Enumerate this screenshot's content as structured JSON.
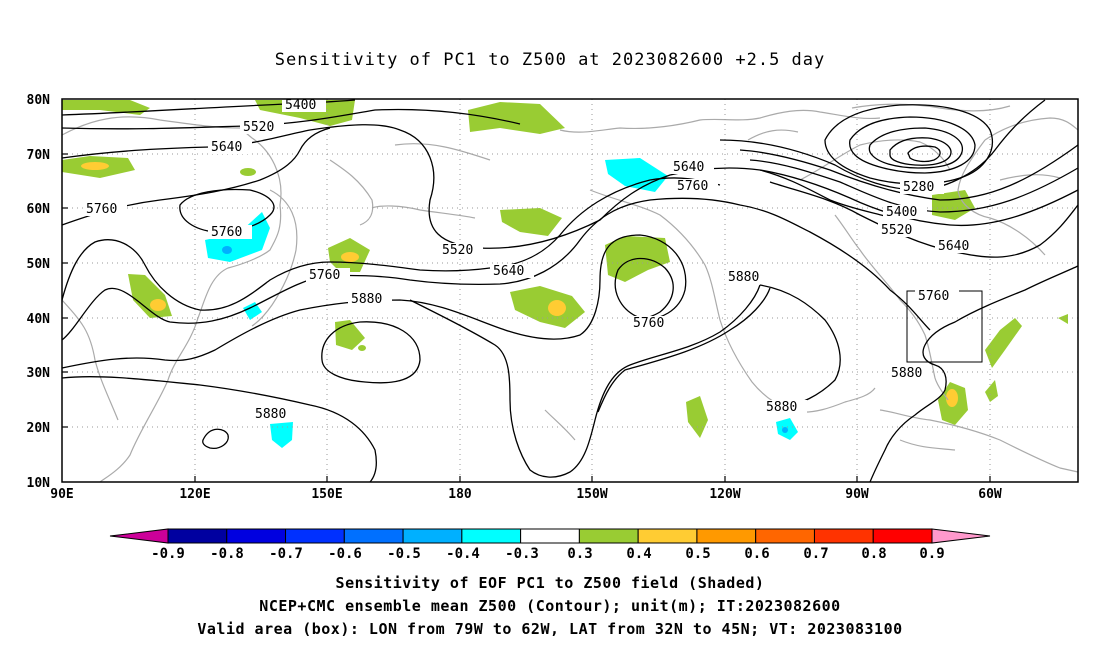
{
  "title": "Sensitivity of PC1 to Z500 at 2023082600 +2.5 day",
  "map": {
    "lat_labels": [
      "80N",
      "70N",
      "60N",
      "50N",
      "40N",
      "30N",
      "20N",
      "10N"
    ],
    "lon_labels": [
      "90E",
      "120E",
      "150E",
      "180",
      "150W",
      "120W",
      "90W",
      "60W"
    ],
    "contour_labels": [
      "5400",
      "5520",
      "5640",
      "5760",
      "5760",
      "5760",
      "5880",
      "5880",
      "5520",
      "5640",
      "5640",
      "5760",
      "5760",
      "5880",
      "5880",
      "5280",
      "5400",
      "5520",
      "5640",
      "5760",
      "5880"
    ],
    "valid_box": {
      "lon": [
        "79W",
        "62W"
      ],
      "lat": [
        "32N",
        "45N"
      ]
    }
  },
  "colorbar": {
    "labels": [
      "-0.9",
      "-0.8",
      "-0.7",
      "-0.6",
      "-0.5",
      "-0.4",
      "-0.3",
      "0.3",
      "0.4",
      "0.5",
      "0.6",
      "0.7",
      "0.8",
      "0.9"
    ],
    "colors": [
      "#0000a0",
      "#0000e0",
      "#0030ff",
      "#0070ff",
      "#00b0ff",
      "#00ffff",
      "#ffffff",
      "#99cc33",
      "#ffcc33",
      "#ff9900",
      "#ff6600",
      "#ff3300",
      "#ff0000"
    ],
    "end_low_color": "#cc0099",
    "end_high_color": "#ff99cc"
  },
  "caption": {
    "line1": "Sensitivity of EOF PC1 to Z500 field (Shaded)",
    "line2": "NCEP+CMC ensemble mean Z500 (Contour); unit(m); IT:2023082600",
    "line3": "Valid area (box): LON from 79W to 62W, LAT from 32N to 45N; VT: 2023083100"
  }
}
